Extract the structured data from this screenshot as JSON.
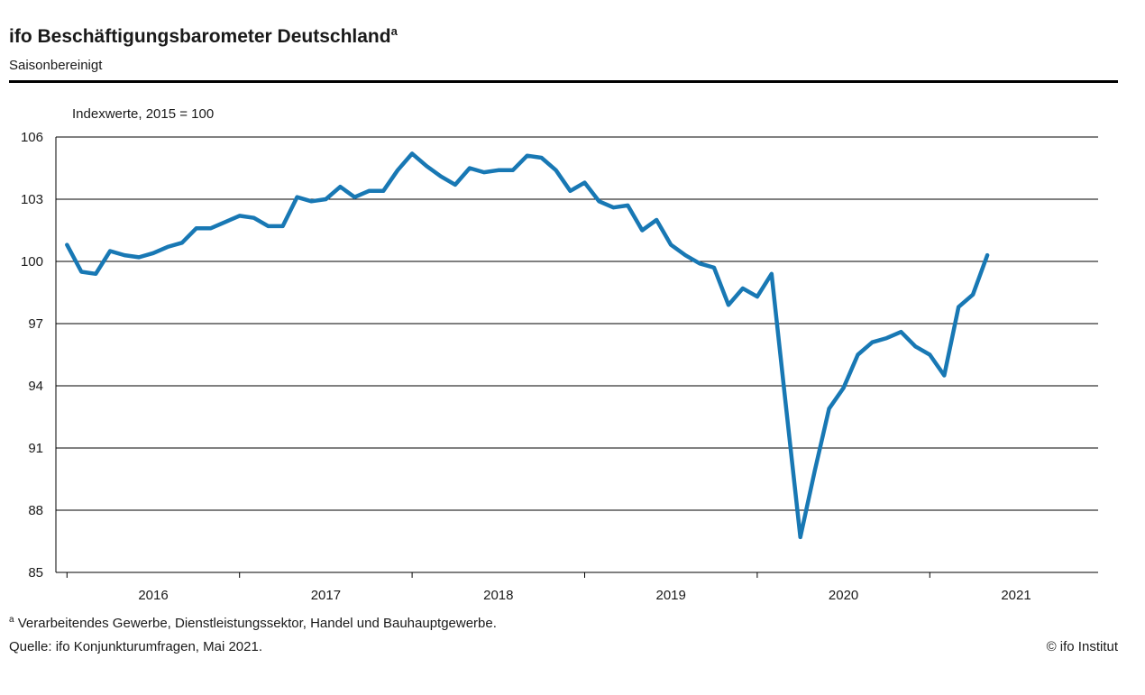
{
  "header": {
    "title": "ifo Beschäftigungsbarometer Deutschland",
    "title_footnote_marker": "a",
    "subtitle": "Saisonbereinigt"
  },
  "chart_data": {
    "type": "line",
    "title": "ifo Beschäftigungsbarometer Deutschland (saisonbereinigt)",
    "unit_label": "Indexwerte, 2015 = 100",
    "ylim": [
      85,
      106
    ],
    "yticks": [
      85,
      88,
      91,
      94,
      97,
      100,
      103,
      106
    ],
    "x_year_labels": [
      "2016",
      "2017",
      "2018",
      "2019",
      "2020",
      "2021"
    ],
    "grid": true,
    "legend_position": "none",
    "line_color": "#1878b4",
    "series": [
      {
        "name": "ifo Beschäftigungsbarometer Deutschland, saisonbereinigt",
        "frequency": "monthly",
        "start_month": "2016-01",
        "end_month": "2021-05",
        "values": [
          100.8,
          99.5,
          99.4,
          100.5,
          100.3,
          100.2,
          100.4,
          100.7,
          100.9,
          101.6,
          101.6,
          101.9,
          102.2,
          102.1,
          101.7,
          101.7,
          103.1,
          102.9,
          103.0,
          103.6,
          103.1,
          103.4,
          103.4,
          104.4,
          105.2,
          104.6,
          104.1,
          103.7,
          104.5,
          104.3,
          104.4,
          104.4,
          105.1,
          105.0,
          104.4,
          103.4,
          103.8,
          102.9,
          102.6,
          102.7,
          101.5,
          102.0,
          100.8,
          100.3,
          99.9,
          99.7,
          97.9,
          98.7,
          98.3,
          99.4,
          93.0,
          86.7,
          89.9,
          92.9,
          93.9,
          95.5,
          96.1,
          96.3,
          96.6,
          95.9,
          95.5,
          94.5,
          97.8,
          98.4,
          100.3
        ]
      }
    ]
  },
  "footnotes": {
    "marker": "a",
    "note": " Verarbeitendes Gewerbe, Dienstleistungssektor, Handel und Bauhauptgewerbe.",
    "source": "Quelle: ifo Konjunkturumfragen, Mai 2021.",
    "copyright": "© ifo Institut"
  }
}
